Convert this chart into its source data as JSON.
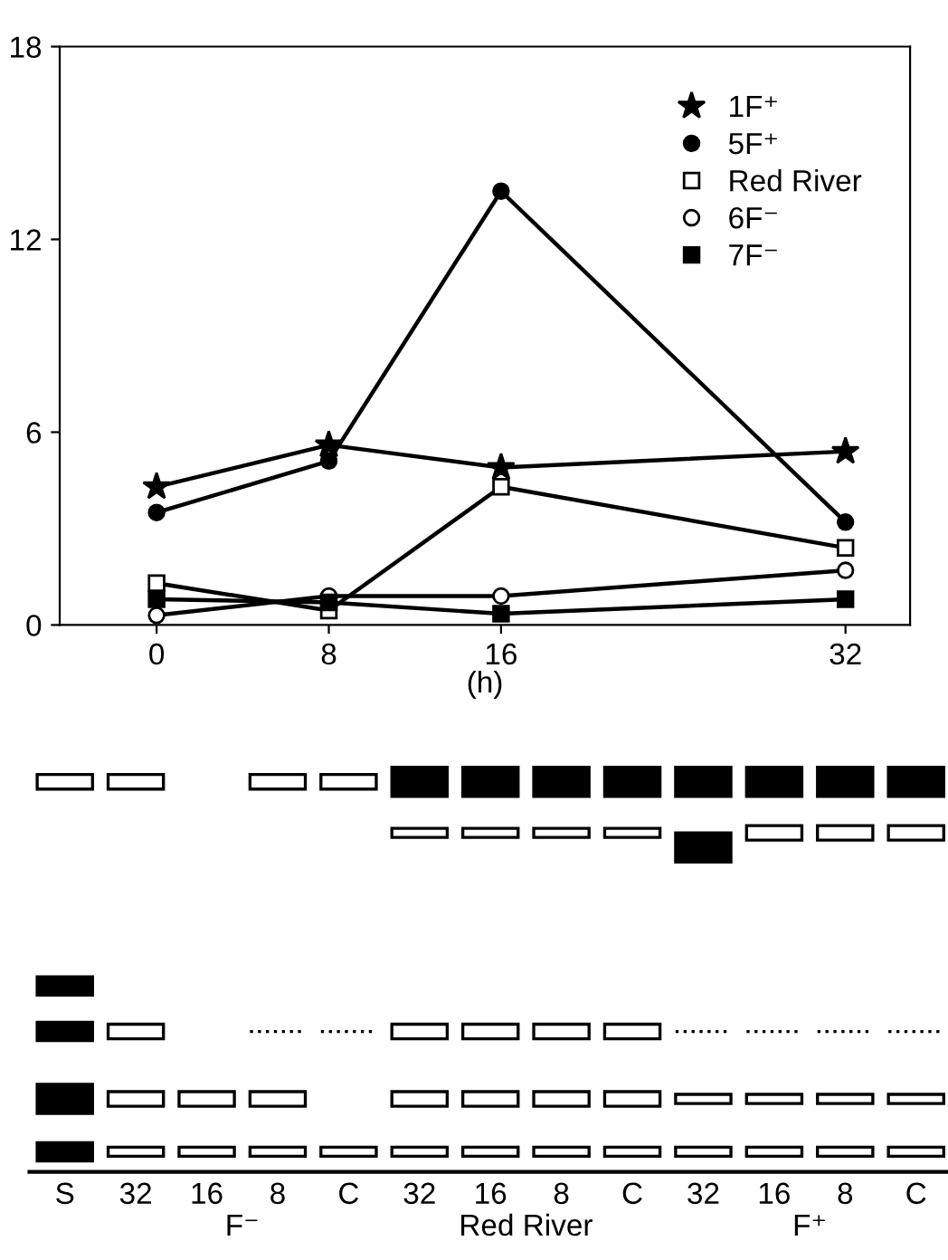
{
  "chart_data": [
    {
      "type": "line",
      "xlabel": "(h)",
      "x": [
        0,
        8,
        16,
        32
      ],
      "xlim": [
        -4.5,
        35
      ],
      "xticks": [
        0,
        8,
        16,
        32
      ],
      "ylim": [
        0,
        18
      ],
      "yticks": [
        0,
        6,
        12,
        18
      ],
      "legend": "top right",
      "grid": false,
      "line_style": "solid",
      "series": [
        {
          "name": "1F⁺",
          "color": "#000000",
          "marker": "star",
          "values": [
            4.3,
            5.6,
            4.9,
            5.4
          ]
        },
        {
          "name": "5F⁺",
          "color": "#000000",
          "marker": "circle",
          "values": [
            3.5,
            5.1,
            13.5,
            3.2
          ]
        },
        {
          "name": "Red River",
          "color": "#ffffff",
          "marker": "square",
          "values": [
            1.3,
            0.45,
            4.3,
            2.4
          ]
        },
        {
          "name": "6F⁻",
          "color": "#ffffff",
          "marker": "circle",
          "values": [
            0.3,
            0.9,
            0.9,
            1.7
          ]
        },
        {
          "name": "7F⁻",
          "color": "#000000",
          "marker": "square",
          "values": [
            0.8,
            0.7,
            0.35,
            0.8
          ]
        }
      ]
    },
    {
      "type": "other",
      "categories": [
        "S",
        "32",
        "16",
        "8",
        "C",
        "32",
        "16",
        "8",
        "C",
        "32",
        "16",
        "8",
        "C"
      ],
      "annotations": [
        "F⁻",
        "Red River",
        "F⁺"
      ]
    }
  ]
}
